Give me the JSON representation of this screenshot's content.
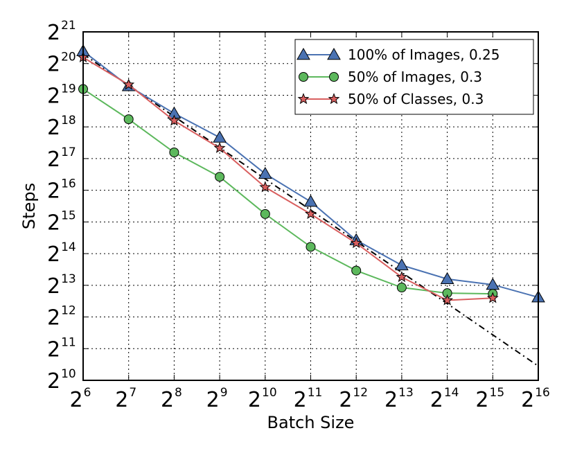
{
  "chart_data": {
    "type": "line",
    "title": "",
    "xlabel": "Batch Size",
    "ylabel": "Steps",
    "x_scale": "log2",
    "y_scale": "log2",
    "xlim": [
      64,
      65536
    ],
    "ylim": [
      1024,
      2097152
    ],
    "x_ticks": [
      {
        "base": "2",
        "exp": "6"
      },
      {
        "base": "2",
        "exp": "7"
      },
      {
        "base": "2",
        "exp": "8"
      },
      {
        "base": "2",
        "exp": "9"
      },
      {
        "base": "2",
        "exp": "10"
      },
      {
        "base": "2",
        "exp": "11"
      },
      {
        "base": "2",
        "exp": "12"
      },
      {
        "base": "2",
        "exp": "13"
      },
      {
        "base": "2",
        "exp": "14"
      },
      {
        "base": "2",
        "exp": "15"
      },
      {
        "base": "2",
        "exp": "16"
      }
    ],
    "y_ticks": [
      {
        "base": "2",
        "exp": "10"
      },
      {
        "base": "2",
        "exp": "11"
      },
      {
        "base": "2",
        "exp": "12"
      },
      {
        "base": "2",
        "exp": "13"
      },
      {
        "base": "2",
        "exp": "14"
      },
      {
        "base": "2",
        "exp": "15"
      },
      {
        "base": "2",
        "exp": "16"
      },
      {
        "base": "2",
        "exp": "17"
      },
      {
        "base": "2",
        "exp": "18"
      },
      {
        "base": "2",
        "exp": "19"
      },
      {
        "base": "2",
        "exp": "20"
      },
      {
        "base": "2",
        "exp": "21"
      }
    ],
    "grid": true,
    "legend_position": "top-right",
    "series": [
      {
        "name": "100% of Images, 0.25",
        "color": "#4a72b2",
        "marker": "triangle",
        "x": [
          64,
          128,
          256,
          512,
          1024,
          2048,
          4096,
          8192,
          16384,
          32768,
          65536
        ],
        "y": [
          1376000,
          640000,
          352000,
          208000,
          94000,
          51000,
          22000,
          12700,
          9400,
          8300,
          6300
        ]
      },
      {
        "name": "50% of Images, 0.3",
        "color": "#5cb85c",
        "marker": "circle",
        "x": [
          64,
          128,
          256,
          512,
          1024,
          2048,
          4096,
          8192,
          16384,
          32768
        ],
        "y": [
          600000,
          310000,
          150000,
          88000,
          39000,
          19000,
          11300,
          7800,
          6900,
          6800
        ]
      },
      {
        "name": "50% of Classes, 0.3",
        "color": "#d95f5f",
        "marker": "star",
        "x": [
          64,
          128,
          256,
          512,
          1024,
          2048,
          4096,
          8192,
          16384,
          32768
        ],
        "y": [
          1200000,
          660000,
          300000,
          165000,
          70000,
          39000,
          20600,
          9800,
          5900,
          6200
        ]
      }
    ],
    "reference_line": {
      "style": "dashed",
      "color": "#000000",
      "x": [
        64,
        65536
      ],
      "y": [
        1290000,
        1400
      ]
    }
  }
}
